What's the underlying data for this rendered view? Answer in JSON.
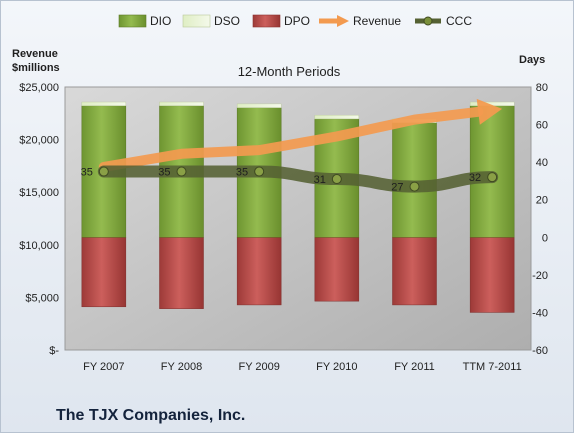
{
  "chart_data": {
    "type": "bar",
    "title": "12-Month Periods",
    "company": "The TJX Companies, Inc.",
    "left_axis_label": "Revenue\n$millions",
    "right_axis_label": "Days",
    "categories": [
      "FY 2007",
      "FY 2008",
      "FY 2009",
      "FY 2010",
      "FY 2011",
      "TTM 7-2011"
    ],
    "left_ticks": [
      "$25,000",
      "$20,000",
      "$15,000",
      "$10,000",
      "$5,000",
      "$-"
    ],
    "right_ticks": [
      "80",
      "60",
      "40",
      "20",
      "0",
      "-20",
      "-40",
      "-60"
    ],
    "left_range": [
      0,
      25000
    ],
    "right_range": [
      -60,
      80
    ],
    "legend": [
      {
        "name": "DIO",
        "kind": "bar",
        "color": "#7ea13a"
      },
      {
        "name": "DSO",
        "kind": "bar",
        "color": "#d9e8b8"
      },
      {
        "name": "DPO",
        "kind": "bar",
        "color": "#b94a48"
      },
      {
        "name": "Revenue",
        "kind": "arrow",
        "color": "#f39a4f"
      },
      {
        "name": "CCC",
        "kind": "line",
        "color": "#5d6b3a"
      }
    ],
    "series": [
      {
        "name": "DIO",
        "axis": "days",
        "values": [
          70,
          70,
          69,
          63,
          61,
          70
        ]
      },
      {
        "name": "DSO",
        "axis": "days",
        "values": [
          2,
          2,
          2,
          2,
          2,
          2
        ]
      },
      {
        "name": "DPO",
        "axis": "days",
        "values": [
          -37,
          -38,
          -36,
          -34,
          -36,
          -40
        ]
      },
      {
        "name": "Revenue",
        "axis": "revenue",
        "values": [
          17400,
          18650,
          19000,
          20300,
          21900,
          22800
        ]
      },
      {
        "name": "CCC",
        "axis": "days",
        "values": [
          35,
          35,
          35,
          31,
          27,
          32
        ]
      }
    ],
    "ccc_labels": [
      "35",
      "35",
      "35",
      "31",
      "27",
      "32"
    ],
    "colors": {
      "plot_bg": "#c4c4c4",
      "dio": "#7ea13a",
      "dso": "#e2eec8",
      "dpo": "#b94a48",
      "revenue": "#f39a4f",
      "ccc": "#556133"
    }
  }
}
